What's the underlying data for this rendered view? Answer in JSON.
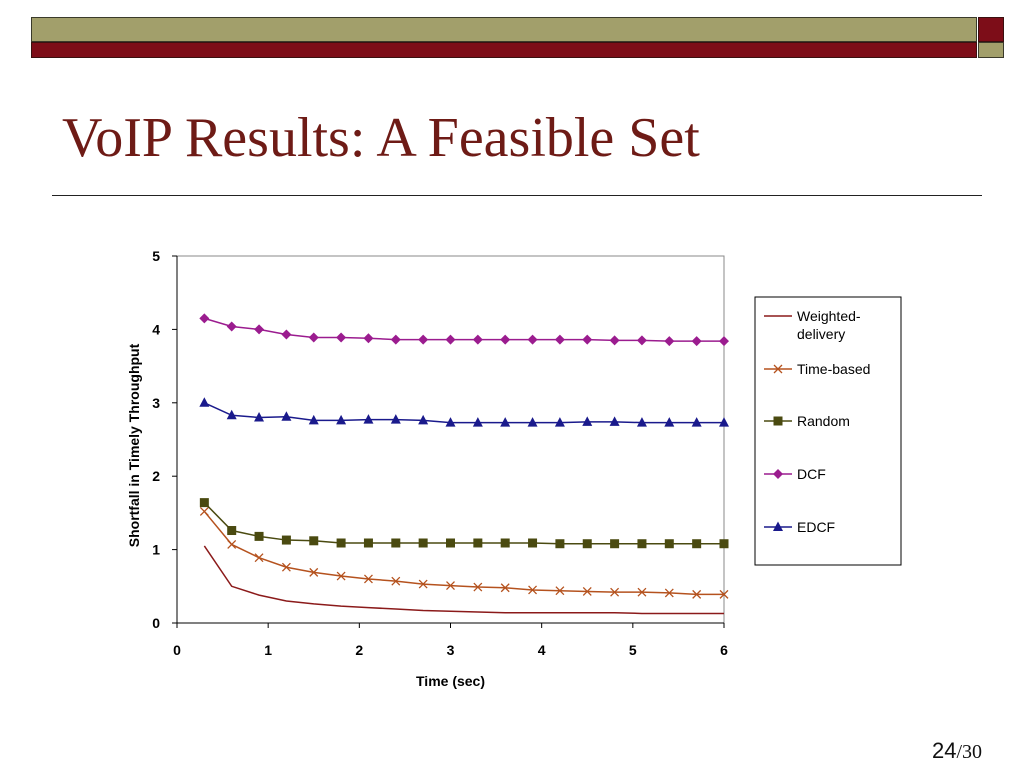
{
  "slide": {
    "title": "VoIP Results: A Feasible Set",
    "page_current": "24",
    "page_total": "/30"
  },
  "colors": {
    "band_olive": "#a29f6b",
    "band_maroon": "#7d0d18",
    "title": "#6e1b16"
  },
  "chart_data": {
    "type": "line",
    "title": "",
    "xlabel": "Time (sec)",
    "ylabel": "Shortfall in Timely Throughput",
    "xlim": [
      0,
      6
    ],
    "ylim": [
      0,
      5
    ],
    "xticks": [
      "0",
      "1",
      "2",
      "3",
      "4",
      "5",
      "6"
    ],
    "yticks": [
      "0",
      "1",
      "2",
      "3",
      "4",
      "5"
    ],
    "grid": false,
    "legend_position": "right",
    "x": [
      0.3,
      0.6,
      0.9,
      1.2,
      1.5,
      1.8,
      2.1,
      2.4,
      2.7,
      3.0,
      3.3,
      3.6,
      3.9,
      4.2,
      4.5,
      4.8,
      5.1,
      5.4,
      5.7,
      6.0
    ],
    "series": [
      {
        "name": "Weighted-delivery",
        "marker": "none",
        "color": "#8b1a1a",
        "values": [
          1.05,
          0.5,
          0.38,
          0.3,
          0.26,
          0.23,
          0.21,
          0.19,
          0.17,
          0.16,
          0.15,
          0.14,
          0.14,
          0.14,
          0.14,
          0.14,
          0.13,
          0.13,
          0.13,
          0.13
        ]
      },
      {
        "name": "Time-based",
        "marker": "x",
        "color": "#b5521e",
        "values": [
          1.52,
          1.07,
          0.89,
          0.76,
          0.69,
          0.64,
          0.6,
          0.57,
          0.53,
          0.51,
          0.49,
          0.48,
          0.45,
          0.44,
          0.43,
          0.42,
          0.42,
          0.41,
          0.39,
          0.39
        ]
      },
      {
        "name": "Random",
        "marker": "square",
        "color": "#4a4a10",
        "values": [
          1.64,
          1.26,
          1.18,
          1.13,
          1.12,
          1.09,
          1.09,
          1.09,
          1.09,
          1.09,
          1.09,
          1.09,
          1.09,
          1.08,
          1.08,
          1.08,
          1.08,
          1.08,
          1.08,
          1.08
        ]
      },
      {
        "name": "DCF",
        "marker": "diamond",
        "color": "#9b1c8f",
        "values": [
          4.15,
          4.04,
          4.0,
          3.93,
          3.89,
          3.89,
          3.88,
          3.86,
          3.86,
          3.86,
          3.86,
          3.86,
          3.86,
          3.86,
          3.86,
          3.85,
          3.85,
          3.84,
          3.84,
          3.84
        ]
      },
      {
        "name": "EDCF",
        "marker": "triangle",
        "color": "#1a1a8c",
        "values": [
          3.0,
          2.83,
          2.8,
          2.81,
          2.76,
          2.76,
          2.77,
          2.77,
          2.76,
          2.73,
          2.73,
          2.73,
          2.73,
          2.73,
          2.74,
          2.74,
          2.73,
          2.73,
          2.73,
          2.73
        ]
      }
    ],
    "legend_labels": [
      [
        "Weighted-",
        "delivery"
      ],
      [
        "Time-based"
      ],
      [
        "Random"
      ],
      [
        "DCF"
      ],
      [
        "EDCF"
      ]
    ]
  }
}
